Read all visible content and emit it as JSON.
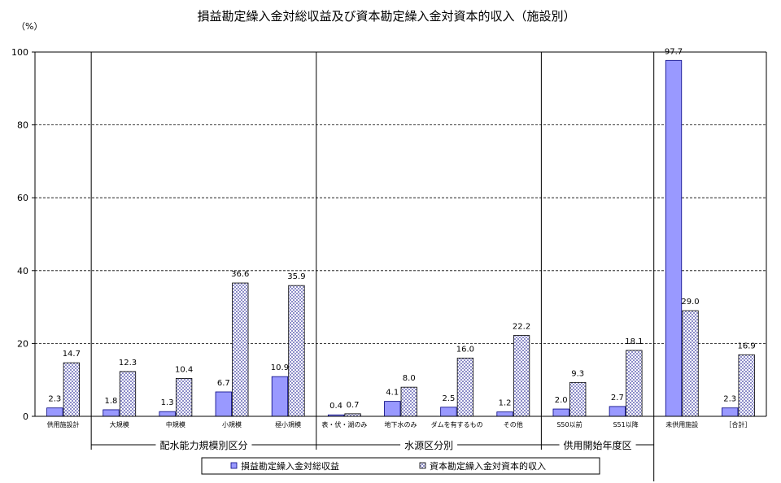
{
  "chart_data": {
    "type": "bar",
    "title": "損益勘定繰入金対総収益及び資本勘定繰入金対資本的収入（施設別）",
    "unit_label": "（%）",
    "ylim": [
      0,
      100
    ],
    "yticks": [
      0,
      20,
      40,
      60,
      80,
      100
    ],
    "grid": "horizontal dashed",
    "legend_position": "bottom",
    "categories": [
      "供用施設計",
      "大規模",
      "中規模",
      "小規模",
      "極小規模",
      "表・伏・湖のみ",
      "地下水のみ",
      "ダムを有するもの",
      "その他",
      "S50以前",
      "S51以降",
      "未供用施設",
      "［合計］"
    ],
    "groups": [
      {
        "label": "配水能力規模別区分",
        "categories": [
          1,
          2,
          3,
          4
        ]
      },
      {
        "label": "水源区分別",
        "categories": [
          5,
          6,
          7,
          8
        ]
      },
      {
        "label": "供用開始年度区",
        "categories": [
          9,
          10
        ]
      }
    ],
    "series": [
      {
        "name": "損益勘定繰入金対総収益",
        "color": "#9999ff",
        "values": [
          2.3,
          1.8,
          1.3,
          6.7,
          10.9,
          0.4,
          4.1,
          2.5,
          1.2,
          2.0,
          2.7,
          97.7,
          2.3
        ],
        "labels": [
          "2.3",
          "1.8",
          "1.3",
          "6.7",
          "10.9",
          "0.4",
          "4.1",
          "2.5",
          "1.2",
          "2.0",
          "2.7",
          "97.7",
          "2.3"
        ]
      },
      {
        "name": "資本勘定繰入金対資本的収入",
        "color": "#c9c9ee",
        "values": [
          14.7,
          12.3,
          10.4,
          36.6,
          35.9,
          0.7,
          8.0,
          16.0,
          22.2,
          9.3,
          18.1,
          29.0,
          16.9
        ],
        "labels": [
          "14.7",
          "12.3",
          "10.4",
          "36.6",
          "35.9",
          "0.7",
          "8.0",
          "16.0",
          "22.2",
          "9.3",
          "18.1",
          "29.0",
          "16.9"
        ]
      }
    ]
  }
}
